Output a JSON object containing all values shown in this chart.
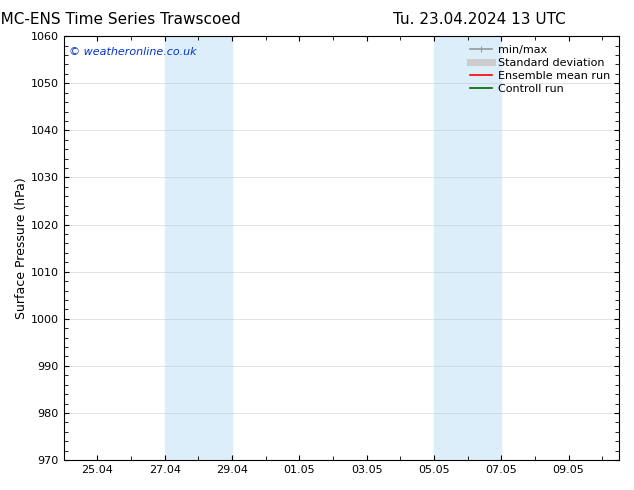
{
  "title_left": "CMC-ENS Time Series Trawscoed",
  "title_right": "Tu. 23.04.2024 13 UTC",
  "ylabel": "Surface Pressure (hPa)",
  "ylim": [
    970,
    1060
  ],
  "yticks": [
    970,
    980,
    990,
    1000,
    1010,
    1020,
    1030,
    1040,
    1050,
    1060
  ],
  "xlim": [
    0.0,
    16.5
  ],
  "xtick_labels": [
    "25.04",
    "27.04",
    "29.04",
    "01.05",
    "03.05",
    "05.05",
    "07.05",
    "09.05"
  ],
  "xtick_positions": [
    1.0,
    3.0,
    5.0,
    7.0,
    9.0,
    11.0,
    13.0,
    15.0
  ],
  "shaded_bands": [
    {
      "x_start": 3.0,
      "x_end": 5.0,
      "color": "#dceef9",
      "alpha": 1.0
    },
    {
      "x_start": 11.0,
      "x_end": 13.0,
      "color": "#dceef9",
      "alpha": 1.0
    }
  ],
  "watermark": "© weatheronline.co.uk",
  "watermark_color": "#0033cc",
  "background_color": "#ffffff",
  "plot_bg_color": "#ffffff",
  "legend_items": [
    {
      "label": "min/max",
      "color": "#999999",
      "lw": 1.2,
      "style": "solid"
    },
    {
      "label": "Standard deviation",
      "color": "#cccccc",
      "lw": 5,
      "style": "solid"
    },
    {
      "label": "Ensemble mean run",
      "color": "#ff0000",
      "lw": 1.2,
      "style": "solid"
    },
    {
      "label": "Controll run",
      "color": "#006600",
      "lw": 1.2,
      "style": "solid"
    }
  ],
  "title_fontsize": 11,
  "ylabel_fontsize": 9,
  "tick_fontsize": 8,
  "legend_fontsize": 8,
  "watermark_fontsize": 8,
  "grid_color": "#bbbbbb",
  "grid_alpha": 0.6,
  "grid_lw": 0.5
}
